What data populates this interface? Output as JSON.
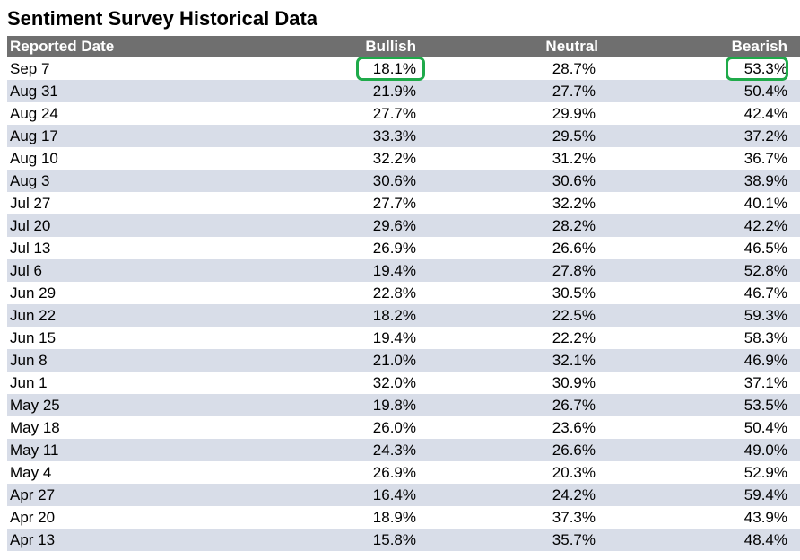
{
  "title": "Sentiment Survey Historical Data",
  "headers": {
    "date": "Reported Date",
    "bullish": "Bullish",
    "neutral": "Neutral",
    "bearish": "Bearish"
  },
  "colors": {
    "header_bg": "#6f6f6f",
    "row_alt_bg": "#d8dde8",
    "highlight_border": "#1faa4a"
  },
  "rows": [
    {
      "date": "Sep 7",
      "bullish": "18.1%",
      "neutral": "28.7%",
      "bearish": "53.3%"
    },
    {
      "date": "Aug 31",
      "bullish": "21.9%",
      "neutral": "27.7%",
      "bearish": "50.4%"
    },
    {
      "date": "Aug 24",
      "bullish": "27.7%",
      "neutral": "29.9%",
      "bearish": "42.4%"
    },
    {
      "date": "Aug 17",
      "bullish": "33.3%",
      "neutral": "29.5%",
      "bearish": "37.2%"
    },
    {
      "date": "Aug 10",
      "bullish": "32.2%",
      "neutral": "31.2%",
      "bearish": "36.7%"
    },
    {
      "date": "Aug 3",
      "bullish": "30.6%",
      "neutral": "30.6%",
      "bearish": "38.9%"
    },
    {
      "date": "Jul 27",
      "bullish": "27.7%",
      "neutral": "32.2%",
      "bearish": "40.1%"
    },
    {
      "date": "Jul 20",
      "bullish": "29.6%",
      "neutral": "28.2%",
      "bearish": "42.2%"
    },
    {
      "date": "Jul 13",
      "bullish": "26.9%",
      "neutral": "26.6%",
      "bearish": "46.5%"
    },
    {
      "date": "Jul 6",
      "bullish": "19.4%",
      "neutral": "27.8%",
      "bearish": "52.8%"
    },
    {
      "date": "Jun 29",
      "bullish": "22.8%",
      "neutral": "30.5%",
      "bearish": "46.7%"
    },
    {
      "date": "Jun 22",
      "bullish": "18.2%",
      "neutral": "22.5%",
      "bearish": "59.3%"
    },
    {
      "date": "Jun 15",
      "bullish": "19.4%",
      "neutral": "22.2%",
      "bearish": "58.3%"
    },
    {
      "date": "Jun 8",
      "bullish": "21.0%",
      "neutral": "32.1%",
      "bearish": "46.9%"
    },
    {
      "date": "Jun 1",
      "bullish": "32.0%",
      "neutral": "30.9%",
      "bearish": "37.1%"
    },
    {
      "date": "May 25",
      "bullish": "19.8%",
      "neutral": "26.7%",
      "bearish": "53.5%"
    },
    {
      "date": "May 18",
      "bullish": "26.0%",
      "neutral": "23.6%",
      "bearish": "50.4%"
    },
    {
      "date": "May 11",
      "bullish": "24.3%",
      "neutral": "26.6%",
      "bearish": "49.0%"
    },
    {
      "date": "May 4",
      "bullish": "26.9%",
      "neutral": "20.3%",
      "bearish": "52.9%"
    },
    {
      "date": "Apr 27",
      "bullish": "16.4%",
      "neutral": "24.2%",
      "bearish": "59.4%"
    },
    {
      "date": "Apr 20",
      "bullish": "18.9%",
      "neutral": "37.3%",
      "bearish": "43.9%"
    },
    {
      "date": "Apr 13",
      "bullish": "15.8%",
      "neutral": "35.7%",
      "bearish": "48.4%"
    }
  ]
}
